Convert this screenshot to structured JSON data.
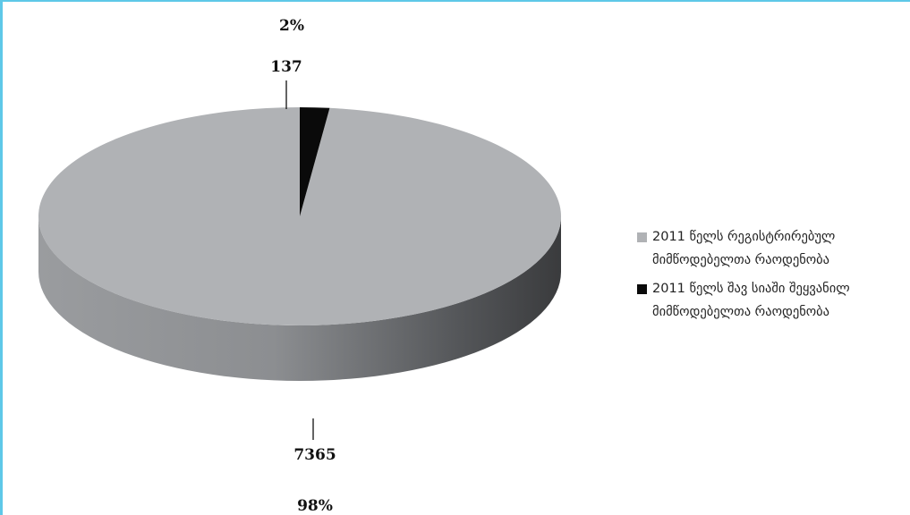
{
  "chart_data": {
    "type": "pie",
    "title": "",
    "slices": [
      {
        "label": "2011 წელს რეგისტრირებულ მიმწოდებელთა რაოდენობა",
        "value": 7365,
        "percent_label": "98%",
        "color": "#b0b2b5",
        "side_color": "#6b6d70"
      },
      {
        "label": "2011 წელს შავ სიაში შეყვანილ მიმწოდებელთა რაოდენობა",
        "value": 137,
        "percent_label": "2%",
        "color": "#0a0a0a",
        "side_color": "#000000"
      }
    ],
    "legend_position": "right"
  },
  "legend": [
    {
      "line1": "2011 წელს რეგისტრირებულ",
      "line2": "მიმწოდებელთა რაოდენობა"
    },
    {
      "line1": "2011 წელს შავ სიაში შეყვანილ",
      "line2": "მიმწოდებელთა რაოდენობა"
    }
  ],
  "colors": {
    "border": "#5ec8e8",
    "label_text": "#111111"
  }
}
